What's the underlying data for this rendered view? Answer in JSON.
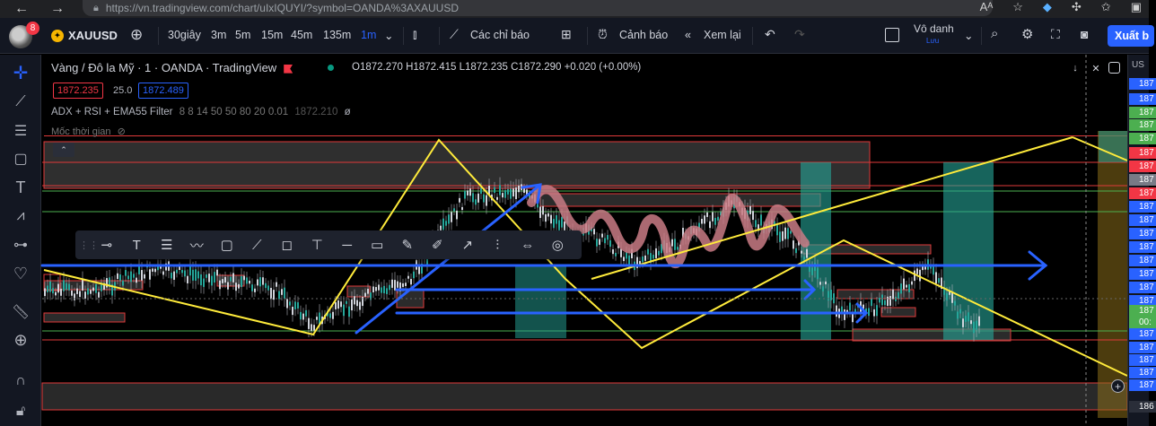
{
  "browser": {
    "url": "https://vn.tradingview.com/chart/uIxIQUYI/?symbol=OANDA%3AXAUUSD",
    "font_size_icon": "Aᴬ"
  },
  "header": {
    "notification_count": "8",
    "symbol": "XAUUSD",
    "intervals": [
      "30giây",
      "3m",
      "5m",
      "15m",
      "45m",
      "135m",
      "1m"
    ],
    "active_interval": "1m",
    "indicators_label": "Các chỉ báo",
    "alert_label": "Cảnh báo",
    "replay_label": "Xem lại",
    "account_label": "Vô danh",
    "account_sub": "Lưu",
    "export_label": "Xuất b"
  },
  "chart": {
    "title": "Vàng / Đô la Mỹ · 1 · OANDA · TradingView",
    "ohlc": "O1872.270 H1872.415 L1872.235 C1872.290 +0.020 (+0.00%)",
    "sell_price": "1872.235",
    "spread": "25.0",
    "buy_price": "1872.489",
    "indicator_name": "ADX + RSI + EMA55 Filter",
    "indicator_params": "8 8 14 50 50 80 20 0.01",
    "indicator_value": "1872.210",
    "time_label": "Mốc thời gian",
    "accent_red": "#f23645",
    "accent_blue": "#2962ff",
    "accent_yellow": "#ffeb3b"
  },
  "price_axis": {
    "head": "US",
    "labels": [
      {
        "text": "187",
        "color": "#2962ff"
      },
      {
        "text": "187",
        "color": "#2962ff"
      },
      {
        "text": "187",
        "color": "#4caf50"
      },
      {
        "text": "187",
        "color": "#4caf50"
      },
      {
        "text": "187",
        "color": "#4caf50"
      },
      {
        "text": "187",
        "color": "#f23645"
      },
      {
        "text": "187",
        "color": "#f23645"
      },
      {
        "text": "187",
        "color": "#787b86"
      },
      {
        "text": "187",
        "color": "#f23645"
      },
      {
        "text": "187",
        "color": "#2962ff"
      },
      {
        "text": "187",
        "color": "#2962ff"
      },
      {
        "text": "187",
        "color": "#2962ff"
      },
      {
        "text": "187",
        "color": "#2962ff"
      },
      {
        "text": "187",
        "color": "#2962ff"
      },
      {
        "text": "187",
        "color": "#2962ff"
      },
      {
        "text": "187",
        "color": "#2962ff"
      },
      {
        "text": "187",
        "color": "#2962ff"
      },
      {
        "text": "187",
        "color": "#4caf50"
      },
      {
        "text": "00:",
        "color": "#4caf50"
      },
      {
        "text": "187",
        "color": "#2962ff"
      },
      {
        "text": "187",
        "color": "#2962ff"
      },
      {
        "text": "187",
        "color": "#2962ff"
      },
      {
        "text": "187",
        "color": "#2962ff"
      },
      {
        "text": "187",
        "color": "#2962ff"
      },
      {
        "text": "186",
        "color": "#2a2e39"
      }
    ]
  },
  "icons": {
    "left_toolbar": [
      "crosshair-icon",
      "trend-line-icon",
      "fib-icon",
      "rectangle-icon",
      "text-icon",
      "pattern-icon",
      "forecast-icon",
      "heart-icon",
      "ruler-icon",
      "zoom-in-icon",
      "magnet-icon",
      "lock-icon"
    ]
  }
}
